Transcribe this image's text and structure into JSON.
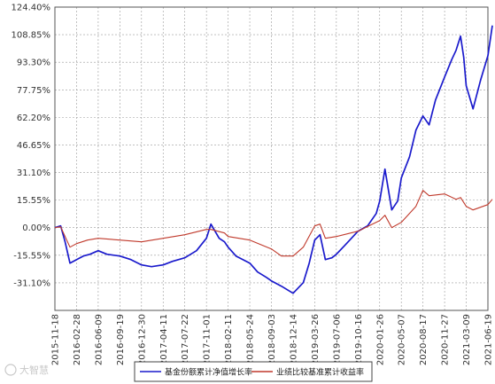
{
  "watermark": "大智慧",
  "chart_data": {
    "type": "line",
    "title": "",
    "xlabel": "",
    "ylabel": "",
    "ylim": [
      -46.65,
      124.4
    ],
    "y_ticks": [
      "124.40%",
      "108.85%",
      "93.30%",
      "77.75%",
      "62.20%",
      "46.65%",
      "31.10%",
      "15.55%",
      "0.00%",
      "-15.55%",
      "-31.10%"
    ],
    "x_ticks": [
      "2015-11-18",
      "2016-02-28",
      "2016-06-09",
      "2016-09-19",
      "2016-12-30",
      "2017-04-11",
      "2017-07-22",
      "2017-11-01",
      "2018-02-11",
      "2018-05-24",
      "2018-09-03",
      "2018-12-14",
      "2019-03-26",
      "2019-07-06",
      "2019-10-16",
      "2020-01-26",
      "2020-05-07",
      "2020-08-17",
      "2020-11-27",
      "2021-03-09",
      "2021-06-19"
    ],
    "grid": true,
    "legend_position": "bottom",
    "series": [
      {
        "name": "基金份额累计净值增长率",
        "color": "#1a1acc",
        "x": [
          "2015-11-18",
          "2015-12-15",
          "2016-01-05",
          "2016-01-28",
          "2016-02-28",
          "2016-03-31",
          "2016-05-01",
          "2016-06-09",
          "2016-07-20",
          "2016-09-19",
          "2016-11-10",
          "2016-12-30",
          "2017-02-15",
          "2017-04-11",
          "2017-05-25",
          "2017-07-22",
          "2017-09-15",
          "2017-11-01",
          "2017-11-22",
          "2017-12-31",
          "2018-01-25",
          "2018-02-11",
          "2018-03-20",
          "2018-05-24",
          "2018-06-30",
          "2018-08-10",
          "2018-09-03",
          "2018-10-20",
          "2018-12-14",
          "2019-01-31",
          "2019-02-28",
          "2019-03-26",
          "2019-04-20",
          "2019-05-15",
          "2019-06-15",
          "2019-07-06",
          "2019-08-15",
          "2019-10-16",
          "2019-11-30",
          "2020-01-10",
          "2020-01-26",
          "2020-02-20",
          "2020-03-23",
          "2020-04-20",
          "2020-05-07",
          "2020-06-15",
          "2020-07-15",
          "2020-08-17",
          "2020-09-15",
          "2020-10-15",
          "2020-11-27",
          "2020-12-31",
          "2021-01-20",
          "2021-02-10",
          "2021-02-25",
          "2021-03-09",
          "2021-04-10",
          "2021-05-15",
          "2021-06-19",
          "2021-07-10"
        ],
        "values": [
          0.0,
          1.0,
          -8.0,
          -20.0,
          -18.0,
          -16.0,
          -15.0,
          -13.0,
          -15.0,
          -16.0,
          -18.0,
          -21.0,
          -22.0,
          -21.0,
          -19.0,
          -17.0,
          -13.0,
          -6.0,
          2.0,
          -6.0,
          -8.0,
          -11.0,
          -16.0,
          -20.0,
          -25.0,
          -28.0,
          -30.0,
          -33.0,
          -37.0,
          -31.0,
          -20.0,
          -7.0,
          -4.0,
          -18.0,
          -17.0,
          -15.0,
          -10.0,
          -2.0,
          1.0,
          8.0,
          15.0,
          33.0,
          10.0,
          15.0,
          28.0,
          40.0,
          55.0,
          63.0,
          58.0,
          72.0,
          85.0,
          95.0,
          100.0,
          108.0,
          96.0,
          80.0,
          67.0,
          83.0,
          97.0,
          114.0
        ]
      },
      {
        "name": "业绩比较基准累计收益率",
        "color": "#c0392b",
        "x": [
          "2015-11-18",
          "2015-12-15",
          "2016-01-05",
          "2016-01-28",
          "2016-02-28",
          "2016-04-20",
          "2016-06-09",
          "2016-09-19",
          "2016-12-30",
          "2017-04-11",
          "2017-07-22",
          "2017-11-01",
          "2017-11-22",
          "2018-01-25",
          "2018-02-11",
          "2018-05-24",
          "2018-09-03",
          "2018-10-20",
          "2018-12-14",
          "2019-01-31",
          "2019-03-26",
          "2019-04-20",
          "2019-05-15",
          "2019-07-06",
          "2019-10-16",
          "2020-01-26",
          "2020-02-20",
          "2020-03-23",
          "2020-05-07",
          "2020-07-15",
          "2020-08-17",
          "2020-09-15",
          "2020-11-27",
          "2021-01-20",
          "2021-02-10",
          "2021-03-09",
          "2021-04-10",
          "2021-06-19",
          "2021-07-10"
        ],
        "values": [
          0.0,
          0.5,
          -5.0,
          -11.0,
          -9.0,
          -7.0,
          -6.0,
          -7.0,
          -8.0,
          -6.0,
          -4.0,
          -1.0,
          -1.0,
          -3.0,
          -5.0,
          -7.0,
          -12.0,
          -16.0,
          -16.0,
          -11.0,
          1.0,
          2.0,
          -6.0,
          -5.0,
          -2.0,
          4.0,
          7.0,
          0.0,
          3.0,
          12.0,
          21.0,
          18.0,
          19.0,
          16.0,
          17.0,
          12.0,
          10.0,
          13.0,
          16.0
        ]
      }
    ]
  }
}
